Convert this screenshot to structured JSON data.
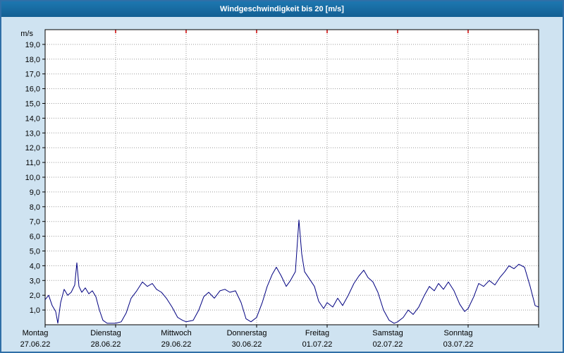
{
  "window_title": "Windgeschwindigkeit bis 20 [m/s]",
  "colors": {
    "line": "#000080",
    "grid": "#9a9a9a",
    "frame": "#000000",
    "background": "#cfe3f1",
    "plot_background": "#ffffff",
    "titlebar": "#17689f",
    "top_tick": "#cc0000",
    "text": "#000000"
  },
  "chart_data": {
    "type": "line",
    "title": "Windgeschwindigkeit bis 20 [m/s]",
    "xlabel": "",
    "ylabel": "m/s",
    "ylim": [
      0,
      20
    ],
    "grid": true,
    "legend_position": "none",
    "y_tick_labels": [
      "1,0",
      "2,0",
      "3,0",
      "4,0",
      "5,0",
      "6,0",
      "7,0",
      "8,0",
      "9,0",
      "10,0",
      "11,0",
      "12,0",
      "13,0",
      "14,0",
      "15,0",
      "16,0",
      "17,0",
      "18,0",
      "19,0"
    ],
    "days": [
      {
        "label": "Montag",
        "date": "27.06.22"
      },
      {
        "label": "Dienstag",
        "date": "28.06.22"
      },
      {
        "label": "Mittwoch",
        "date": "29.06.22"
      },
      {
        "label": "Donnerstag",
        "date": "30.06.22"
      },
      {
        "label": "Freitag",
        "date": "01.07.22"
      },
      {
        "label": "Samstag",
        "date": "02.07.22"
      },
      {
        "label": "Sonntag",
        "date": "03.07.22"
      }
    ],
    "series": [
      {
        "name": "Windgeschwindigkeit",
        "unit": "m/s",
        "color": "#000080",
        "points": [
          [
            0.0,
            1.7
          ],
          [
            0.05,
            2.0
          ],
          [
            0.1,
            1.3
          ],
          [
            0.15,
            0.9
          ],
          [
            0.18,
            0.1
          ],
          [
            0.22,
            1.5
          ],
          [
            0.27,
            2.4
          ],
          [
            0.32,
            2.0
          ],
          [
            0.37,
            2.2
          ],
          [
            0.42,
            2.7
          ],
          [
            0.45,
            4.2
          ],
          [
            0.48,
            2.6
          ],
          [
            0.52,
            2.2
          ],
          [
            0.57,
            2.5
          ],
          [
            0.62,
            2.1
          ],
          [
            0.67,
            2.3
          ],
          [
            0.72,
            1.9
          ],
          [
            0.77,
            1.0
          ],
          [
            0.82,
            0.3
          ],
          [
            0.88,
            0.1
          ],
          [
            0.94,
            0.1
          ],
          [
            1.0,
            0.1
          ],
          [
            1.08,
            0.2
          ],
          [
            1.15,
            0.8
          ],
          [
            1.22,
            1.8
          ],
          [
            1.3,
            2.3
          ],
          [
            1.38,
            2.9
          ],
          [
            1.45,
            2.6
          ],
          [
            1.52,
            2.8
          ],
          [
            1.58,
            2.4
          ],
          [
            1.65,
            2.2
          ],
          [
            1.72,
            1.8
          ],
          [
            1.8,
            1.2
          ],
          [
            1.88,
            0.5
          ],
          [
            1.95,
            0.3
          ],
          [
            2.0,
            0.2
          ],
          [
            2.1,
            0.3
          ],
          [
            2.18,
            1.0
          ],
          [
            2.25,
            1.9
          ],
          [
            2.32,
            2.2
          ],
          [
            2.4,
            1.8
          ],
          [
            2.48,
            2.3
          ],
          [
            2.55,
            2.4
          ],
          [
            2.62,
            2.2
          ],
          [
            2.7,
            2.3
          ],
          [
            2.78,
            1.5
          ],
          [
            2.85,
            0.4
          ],
          [
            2.92,
            0.2
          ],
          [
            3.0,
            0.5
          ],
          [
            3.08,
            1.5
          ],
          [
            3.15,
            2.6
          ],
          [
            3.22,
            3.4
          ],
          [
            3.28,
            3.9
          ],
          [
            3.35,
            3.3
          ],
          [
            3.42,
            2.6
          ],
          [
            3.48,
            3.0
          ],
          [
            3.55,
            3.6
          ],
          [
            3.6,
            7.1
          ],
          [
            3.64,
            4.8
          ],
          [
            3.68,
            3.6
          ],
          [
            3.75,
            3.1
          ],
          [
            3.82,
            2.6
          ],
          [
            3.88,
            1.6
          ],
          [
            3.95,
            1.1
          ],
          [
            4.0,
            1.5
          ],
          [
            4.08,
            1.2
          ],
          [
            4.15,
            1.8
          ],
          [
            4.22,
            1.3
          ],
          [
            4.3,
            2.0
          ],
          [
            4.38,
            2.8
          ],
          [
            4.45,
            3.3
          ],
          [
            4.52,
            3.7
          ],
          [
            4.58,
            3.2
          ],
          [
            4.65,
            2.9
          ],
          [
            4.72,
            2.2
          ],
          [
            4.8,
            1.0
          ],
          [
            4.88,
            0.3
          ],
          [
            4.95,
            0.1
          ],
          [
            5.0,
            0.2
          ],
          [
            5.08,
            0.5
          ],
          [
            5.15,
            1.0
          ],
          [
            5.22,
            0.7
          ],
          [
            5.3,
            1.2
          ],
          [
            5.38,
            2.0
          ],
          [
            5.45,
            2.6
          ],
          [
            5.52,
            2.3
          ],
          [
            5.58,
            2.8
          ],
          [
            5.65,
            2.4
          ],
          [
            5.72,
            2.9
          ],
          [
            5.8,
            2.3
          ],
          [
            5.88,
            1.4
          ],
          [
            5.95,
            0.9
          ],
          [
            6.0,
            1.1
          ],
          [
            6.08,
            1.9
          ],
          [
            6.15,
            2.8
          ],
          [
            6.22,
            2.6
          ],
          [
            6.3,
            3.0
          ],
          [
            6.38,
            2.7
          ],
          [
            6.45,
            3.2
          ],
          [
            6.52,
            3.6
          ],
          [
            6.58,
            4.0
          ],
          [
            6.65,
            3.8
          ],
          [
            6.72,
            4.1
          ],
          [
            6.8,
            3.9
          ],
          [
            6.88,
            2.6
          ],
          [
            6.95,
            1.3
          ],
          [
            7.0,
            1.2
          ]
        ]
      }
    ]
  }
}
